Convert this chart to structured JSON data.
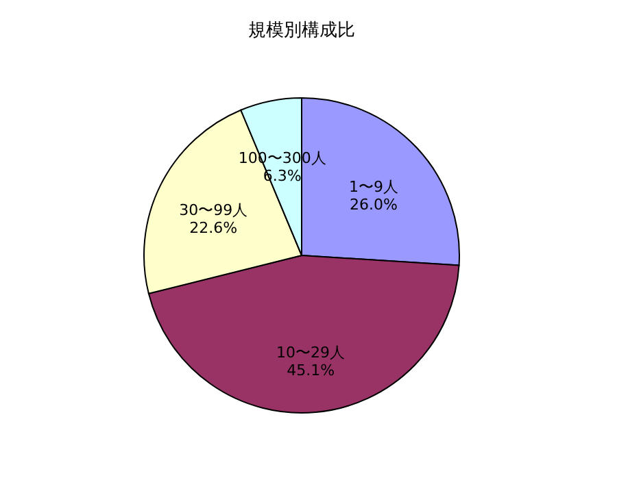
{
  "chart_data": {
    "type": "pie",
    "title": "規模別構成比",
    "categories": [
      "1〜9人",
      "10〜29人",
      "30〜99人",
      "100〜300人"
    ],
    "values": [
      26.0,
      45.1,
      22.6,
      6.3
    ],
    "colors": [
      "#9999ff",
      "#993366",
      "#ffffcc",
      "#ccffff"
    ],
    "value_labels": [
      "26.0%",
      "45.1%",
      "22.6%",
      "6.3%"
    ]
  }
}
